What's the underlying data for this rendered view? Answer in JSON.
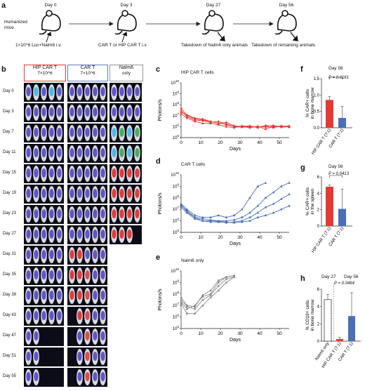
{
  "panel_a": {
    "label": "a",
    "start_label": [
      "Humanized",
      "mice"
    ],
    "days": [
      "Day 0",
      "Day 3",
      "Day 27",
      "Day 56"
    ],
    "injections": [
      "1×10^6 Luc+Nalm6 i.v.",
      "CAR T or HIP CAR T i.v."
    ],
    "takedowns": [
      "Takedown of Nalm6 only animals",
      "Takedown of remaining animals"
    ]
  },
  "panel_b": {
    "label": "b",
    "groups": [
      {
        "name": "HIP CAR T",
        "dose": "7×10^6",
        "color": "#e53935"
      },
      {
        "name": "CAR T",
        "dose": "7×10^6",
        "color": "#5c7fc7"
      },
      {
        "name": "Nalm6",
        "dose": "only",
        "color": "#999999"
      }
    ],
    "days": [
      "Day 0",
      "Day 3",
      "Day 7",
      "Day 11",
      "Day 15",
      "Day 19",
      "Day 23",
      "Day 27",
      "Day 31",
      "Day 35",
      "Day 39",
      "Day 43",
      "Day 47",
      "Day 51",
      "Day 55"
    ]
  },
  "panel_c": {
    "label": "c",
    "title": "HIP CAR T cells",
    "ylabel": "Photons/s",
    "xlabel": "Days"
  },
  "panel_d": {
    "label": "d",
    "title": "CAR T cells",
    "ylabel": "Photons/s",
    "xlabel": "Days"
  },
  "panel_e": {
    "label": "e",
    "title": "Nalm6 only",
    "ylabel": "Photons/s",
    "xlabel": "Days"
  },
  "panel_f": {
    "label": "f",
    "title": "Day 56",
    "pvalue": "P = 0.0161",
    "ylabel": [
      "% CAR+ cells",
      "in bone marrow"
    ]
  },
  "panel_g": {
    "label": "g",
    "title": "Day 56",
    "pvalue": "P = 0.0413",
    "ylabel": [
      "% CAR+ cells",
      "in the spleen"
    ]
  },
  "panel_h": {
    "label": "h",
    "title_left": "Day 27",
    "title_right": "Day 56",
    "pvalue": "P = 0.0464",
    "ylabel": [
      "% CD19+ cells",
      "in bone marrow"
    ]
  },
  "chart_data": [
    {
      "type": "line",
      "title": "HIP CAR T cells",
      "xlabel": "Days",
      "ylabel": "Photons/s",
      "xlim": [
        0,
        55
      ],
      "ylim": [
        100000,
        10000000000
      ],
      "yscale": "log",
      "xticks": [
        0,
        10,
        20,
        30,
        40,
        50
      ],
      "color": "#e53935",
      "series": [
        {
          "x": [
            0,
            3,
            7,
            11,
            15,
            19,
            23,
            27,
            31,
            35,
            39,
            43,
            47,
            51,
            55
          ],
          "y": [
            50000000.0,
            10000000.0,
            5000000.0,
            4000000.0,
            3000000.0,
            2000000.0,
            1800000.0,
            1000000.0,
            1000000.0,
            1200000.0,
            800000.0,
            1300000.0,
            1000000.0,
            1100000.0,
            1000000.0
          ]
        },
        {
          "x": [
            0,
            3,
            7,
            11,
            15,
            19,
            23,
            27,
            31,
            35,
            39,
            43,
            47,
            51,
            55
          ],
          "y": [
            30000000.0,
            8000000.0,
            4000000.0,
            3500000.0,
            2500000.0,
            3000000.0,
            1500000.0,
            1000000.0,
            900000.0,
            1000000.0,
            1000000.0,
            1000000.0,
            1300000.0,
            900000.0,
            1000000.0
          ]
        },
        {
          "x": [
            0,
            3,
            7,
            11,
            15,
            19,
            23,
            27,
            31,
            35,
            39,
            43,
            47,
            51,
            55
          ],
          "y": [
            20000000.0,
            12000000.0,
            6000000.0,
            5000000.0,
            3000000.0,
            2000000.0,
            2500000.0,
            1200000.0,
            1000000.0,
            800000.0,
            1100000.0,
            600000.0,
            1000000.0,
            1000000.0,
            1200000.0
          ]
        },
        {
          "x": [
            0,
            3,
            7,
            11,
            15,
            19,
            23,
            27,
            31,
            35,
            39,
            43,
            47,
            51,
            55
          ],
          "y": [
            15000000.0,
            6000000.0,
            3000000.0,
            2000000.0,
            2000000.0,
            1500000.0,
            1000000.0,
            800000.0,
            1200000.0,
            1000000.0,
            900000.0,
            1000000.0,
            800000.0,
            1200000.0,
            900000.0
          ]
        }
      ]
    },
    {
      "type": "line",
      "title": "CAR T cells",
      "xlabel": "Days",
      "ylabel": "Photons/s",
      "xlim": [
        0,
        55
      ],
      "ylim": [
        100000,
        10000000000
      ],
      "yscale": "log",
      "xticks": [
        0,
        10,
        20,
        30,
        40,
        50
      ],
      "color": "#4a6fb5",
      "series": [
        {
          "x": [
            0,
            3,
            7,
            11,
            15,
            19,
            23,
            27,
            31,
            35,
            39,
            43
          ],
          "y": [
            30000000.0,
            10000000.0,
            3000000.0,
            2000000.0,
            2000000.0,
            3000000.0,
            2000000.0,
            3000000.0,
            10000000.0,
            100000000.0,
            1000000000.0,
            2000000000.0
          ]
        },
        {
          "x": [
            0,
            3,
            7,
            11,
            15,
            19,
            23,
            27,
            31,
            35,
            39,
            43,
            47,
            51,
            55
          ],
          "y": [
            20000000.0,
            8000000.0,
            2000000.0,
            1500000.0,
            1200000.0,
            1000000.0,
            1000000.0,
            1200000.0,
            2000000.0,
            5000000.0,
            20000000.0,
            100000000.0,
            300000000.0,
            1000000000.0,
            2000000000.0
          ]
        },
        {
          "x": [
            0,
            3,
            7,
            11,
            15,
            19,
            23,
            27,
            31,
            35,
            39,
            43,
            47,
            51,
            55
          ],
          "y": [
            15000000.0,
            5000000.0,
            1500000.0,
            1000000.0,
            800000.0,
            800000.0,
            700000.0,
            800000.0,
            1000000.0,
            2000000.0,
            5000000.0,
            15000000.0,
            30000000.0,
            80000000.0,
            200000000.0
          ]
        },
        {
          "x": [
            0,
            3,
            7,
            11,
            15,
            19,
            23,
            27,
            31,
            35,
            39,
            43,
            47,
            51,
            55
          ],
          "y": [
            25000000.0,
            6000000.0,
            2000000.0,
            1000000.0,
            1000000.0,
            900000.0,
            800000.0,
            700000.0,
            800000.0,
            1000000.0,
            2000000.0,
            3000000.0,
            5000000.0,
            10000000.0,
            20000000.0
          ]
        }
      ]
    },
    {
      "type": "line",
      "title": "Nalm6 only",
      "xlabel": "Days",
      "ylabel": "Photons/s",
      "xlim": [
        0,
        55
      ],
      "ylim": [
        100000,
        10000000000
      ],
      "yscale": "log",
      "xticks": [
        0,
        10,
        20,
        30,
        40,
        50
      ],
      "color": "#888888",
      "series": [
        {
          "x": [
            0,
            3,
            7,
            11,
            15,
            19,
            23,
            27
          ],
          "y": [
            20000000.0,
            5000000.0,
            10000000.0,
            60000000.0,
            100000000.0,
            1000000000.0,
            3000000000.0,
            4000000000.0
          ]
        },
        {
          "x": [
            0,
            3,
            7,
            11,
            15,
            19,
            23,
            27
          ],
          "y": [
            30000000.0,
            8000000.0,
            5000000.0,
            30000000.0,
            80000000.0,
            500000000.0,
            2000000000.0,
            3000000000.0
          ]
        },
        {
          "x": [
            0,
            3,
            7,
            11,
            15,
            19,
            23,
            27
          ],
          "y": [
            15000000.0,
            2000000.0,
            2000000.0,
            10000000.0,
            50000000.0,
            200000000.0,
            1000000000.0,
            3000000000.0
          ]
        },
        {
          "x": [
            0,
            3,
            7,
            11,
            15,
            19,
            23,
            27
          ],
          "y": [
            50000000.0,
            10000000.0,
            8000000.0,
            80000000.0,
            200000000.0,
            1500000000.0,
            3000000000.0,
            4000000000.0
          ]
        }
      ]
    },
    {
      "type": "bar",
      "title": "Day 56",
      "categories": [
        "HIP CAR T (7:1)",
        "CAR T (7:1)"
      ],
      "values": [
        0.85,
        0.3
      ],
      "errors": [
        0.1,
        0.35
      ],
      "colors": [
        "#e53935",
        "#4a6fb5"
      ],
      "ylim": [
        0,
        1.5
      ],
      "yticks": [
        0,
        0.5,
        1.0,
        1.5
      ],
      "ylabel": "% CAR+ cells in bone marrow"
    },
    {
      "type": "bar",
      "title": "Day 56",
      "categories": [
        "HIP CAR T (7:1)",
        "CAR T (7:1)"
      ],
      "values": [
        4.8,
        2.1
      ],
      "errors": [
        0.2,
        2.4
      ],
      "colors": [
        "#e53935",
        "#4a6fb5"
      ],
      "ylim": [
        0,
        6
      ],
      "yticks": [
        0,
        2,
        4,
        6
      ],
      "ylabel": "% CAR+ cells in the spleen"
    },
    {
      "type": "bar",
      "categories": [
        "Nalm6 only",
        "HIP CAR T (7:1)",
        "CAR T (7:1)"
      ],
      "values": [
        4.8,
        0.25,
        2.9
      ],
      "errors": [
        0.6,
        0.2,
        2.7
      ],
      "colors": [
        "#ffffff",
        "#e53935",
        "#4a6fb5"
      ],
      "ylim": [
        0,
        6
      ],
      "yticks": [
        0,
        2,
        4,
        6
      ],
      "ylabel": "% CD19+ cells in bone marrow"
    }
  ]
}
